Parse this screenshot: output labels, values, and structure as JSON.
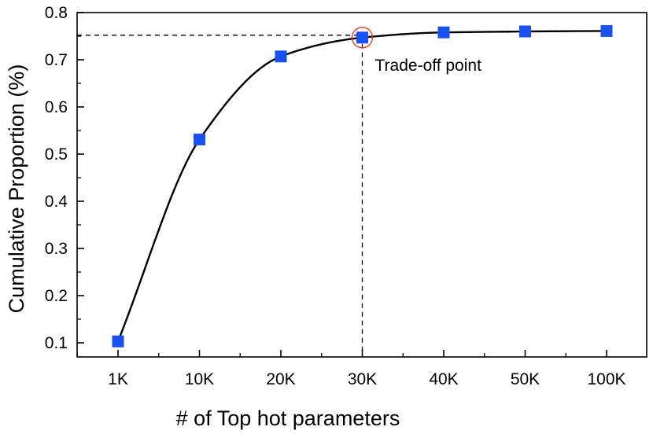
{
  "chart_data": {
    "type": "line",
    "title": "",
    "xlabel": "# of Top hot parameters",
    "ylabel": "Cumulative Proportion (%)",
    "categories": [
      "1K",
      "10K",
      "20K",
      "30K",
      "40K",
      "50K",
      "100K"
    ],
    "ylim": [
      0.07,
      0.8
    ],
    "yticks": [
      0.1,
      0.2,
      0.3,
      0.4,
      0.5,
      0.6,
      0.7,
      0.8
    ],
    "ytick_labels": [
      "0.1",
      "0.2",
      "0.3",
      "0.4",
      "0.5",
      "0.6",
      "0.7",
      "0.8"
    ],
    "grid": false,
    "legend": "none",
    "series": [
      {
        "values": [
          0.103,
          0.531,
          0.707,
          0.747,
          0.758,
          0.76,
          0.761
        ],
        "marker": "square",
        "marker_color": "#1a50f0",
        "line_color": "#000000",
        "line_style": "smooth"
      }
    ],
    "annotations": [
      {
        "text": "Trade-off point",
        "category": "30K",
        "y": 0.747,
        "highlight_color": "#e8302a",
        "reference_y": 0.752
      }
    ]
  }
}
